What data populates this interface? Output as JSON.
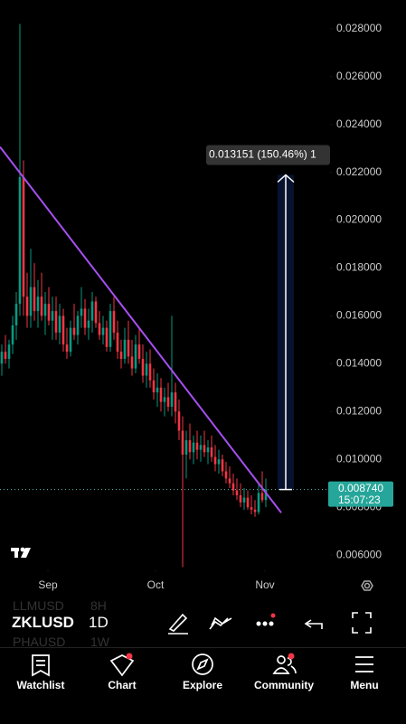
{
  "chart_data": {
    "type": "candlestick",
    "up_color": "#089981",
    "down_color": "#f23645",
    "xlim": [
      -0.5,
      90.75
    ],
    "ylim": [
      0.0054,
      0.0292
    ],
    "yticks": [
      {
        "value": 0.006,
        "label": "0.006000"
      },
      {
        "value": 0.008,
        "label": "0.008000"
      },
      {
        "value": 0.01,
        "label": "0.010000"
      },
      {
        "value": 0.012,
        "label": "0.012000"
      },
      {
        "value": 0.014,
        "label": "0.014000"
      },
      {
        "value": 0.016,
        "label": "0.016000"
      },
      {
        "value": 0.018,
        "label": "0.018000"
      },
      {
        "value": 0.02,
        "label": "0.020000"
      },
      {
        "value": 0.022,
        "label": "0.022000"
      },
      {
        "value": 0.024,
        "label": "0.024000"
      },
      {
        "value": 0.026,
        "label": "0.026000"
      },
      {
        "value": 0.028,
        "label": "0.028000"
      }
    ],
    "xticks": [
      {
        "value": 12.75,
        "label": "Sep"
      },
      {
        "value": 42.5,
        "label": "Oct"
      },
      {
        "value": 72.75,
        "label": "Nov"
      }
    ],
    "candles": [
      [
        0.014,
        0.0148,
        0.0135,
        0.0145
      ],
      [
        0.0145,
        0.0152,
        0.014,
        0.0142
      ],
      [
        0.0142,
        0.015,
        0.0138,
        0.0148
      ],
      [
        0.0148,
        0.016,
        0.0144,
        0.0156
      ],
      [
        0.0156,
        0.017,
        0.015,
        0.0165
      ],
      [
        0.0165,
        0.0282,
        0.016,
        0.0218
      ],
      [
        0.0218,
        0.0225,
        0.016,
        0.0168
      ],
      [
        0.0168,
        0.0178,
        0.0155,
        0.016
      ],
      [
        0.016,
        0.0188,
        0.0155,
        0.0172
      ],
      [
        0.0172,
        0.0182,
        0.0158,
        0.0162
      ],
      [
        0.0162,
        0.0175,
        0.0155,
        0.0168
      ],
      [
        0.0168,
        0.0178,
        0.0158,
        0.016
      ],
      [
        0.016,
        0.017,
        0.0152,
        0.0165
      ],
      [
        0.0165,
        0.0172,
        0.0156,
        0.0158
      ],
      [
        0.0158,
        0.0168,
        0.015,
        0.0162
      ],
      [
        0.0162,
        0.0168,
        0.015,
        0.0153
      ],
      [
        0.0153,
        0.0165,
        0.0148,
        0.016
      ],
      [
        0.016,
        0.0163,
        0.0145,
        0.0148
      ],
      [
        0.0148,
        0.0155,
        0.0142,
        0.0145
      ],
      [
        0.0145,
        0.0158,
        0.0143,
        0.0155
      ],
      [
        0.0155,
        0.0165,
        0.015,
        0.0152
      ],
      [
        0.0152,
        0.0162,
        0.0148,
        0.016
      ],
      [
        0.016,
        0.0172,
        0.0155,
        0.0163
      ],
      [
        0.0163,
        0.0167,
        0.0152,
        0.0155
      ],
      [
        0.0155,
        0.0163,
        0.015,
        0.0158
      ],
      [
        0.0158,
        0.017,
        0.0153,
        0.0166
      ],
      [
        0.0166,
        0.0168,
        0.0155,
        0.0157
      ],
      [
        0.0157,
        0.0162,
        0.015,
        0.0152
      ],
      [
        0.0152,
        0.016,
        0.0148,
        0.0155
      ],
      [
        0.0155,
        0.0158,
        0.0145,
        0.0147
      ],
      [
        0.0147,
        0.0165,
        0.0145,
        0.0162
      ],
      [
        0.0162,
        0.0168,
        0.015,
        0.0153
      ],
      [
        0.0153,
        0.0158,
        0.0142,
        0.0145
      ],
      [
        0.0145,
        0.015,
        0.0138,
        0.0142
      ],
      [
        0.0142,
        0.0155,
        0.014,
        0.015
      ],
      [
        0.015,
        0.0158,
        0.014,
        0.0143
      ],
      [
        0.0143,
        0.015,
        0.0135,
        0.0138
      ],
      [
        0.0138,
        0.0152,
        0.0136,
        0.0148
      ],
      [
        0.0148,
        0.0155,
        0.014,
        0.0142
      ],
      [
        0.0142,
        0.0148,
        0.0132,
        0.0135
      ],
      [
        0.0135,
        0.0145,
        0.013,
        0.014
      ],
      [
        0.014,
        0.0146,
        0.013,
        0.0133
      ],
      [
        0.0133,
        0.0138,
        0.0125,
        0.0128
      ],
      [
        0.0128,
        0.0136,
        0.0122,
        0.013
      ],
      [
        0.013,
        0.0134,
        0.012,
        0.0124
      ],
      [
        0.0124,
        0.013,
        0.0118,
        0.0126
      ],
      [
        0.0126,
        0.0132,
        0.012,
        0.0122
      ],
      [
        0.0122,
        0.016,
        0.0118,
        0.0128
      ],
      [
        0.0128,
        0.0132,
        0.0115,
        0.012
      ],
      [
        0.012,
        0.0125,
        0.0108,
        0.0112
      ],
      [
        0.0112,
        0.0118,
        0.0055,
        0.0102
      ],
      [
        0.0102,
        0.0112,
        0.0092,
        0.0108
      ],
      [
        0.0108,
        0.0115,
        0.01,
        0.0103
      ],
      [
        0.0103,
        0.011,
        0.0098,
        0.0107
      ],
      [
        0.0107,
        0.0112,
        0.01,
        0.0104
      ],
      [
        0.0104,
        0.011,
        0.0099,
        0.0106
      ],
      [
        0.0106,
        0.0112,
        0.0101,
        0.0103
      ],
      [
        0.0103,
        0.0108,
        0.0098,
        0.0105
      ],
      [
        0.0105,
        0.011,
        0.0099,
        0.0101
      ],
      [
        0.0101,
        0.0106,
        0.0095,
        0.0098
      ],
      [
        0.0098,
        0.0104,
        0.0094,
        0.01
      ],
      [
        0.01,
        0.0102,
        0.0093,
        0.0095
      ],
      [
        0.0095,
        0.0099,
        0.009,
        0.0092
      ],
      [
        0.0092,
        0.0097,
        0.0088,
        0.009
      ],
      [
        0.009,
        0.0094,
        0.0085,
        0.0087
      ],
      [
        0.0087,
        0.0092,
        0.0083,
        0.0085
      ],
      [
        0.0085,
        0.009,
        0.008,
        0.0082
      ],
      [
        0.0082,
        0.0088,
        0.0079,
        0.0084
      ],
      [
        0.0084,
        0.0087,
        0.0079,
        0.008
      ],
      [
        0.008,
        0.0085,
        0.0077,
        0.0079
      ],
      [
        0.0079,
        0.0083,
        0.0076,
        0.0078
      ],
      [
        0.0078,
        0.009,
        0.0077,
        0.0086
      ],
      [
        0.0086,
        0.0095,
        0.0082,
        0.0083
      ],
      [
        0.0083,
        0.0092,
        0.008,
        0.00874
      ]
    ],
    "trendline": {
      "color": "#a64ff0",
      "x": [
        -0.5,
        77.25
      ],
      "values": [
        0.02306,
        0.00777
      ]
    },
    "measure": {
      "x": 78.5,
      "from": 0.00874,
      "to": 0.02189,
      "label": "0.013151 (150.46%) 1"
    },
    "price_tag": {
      "value": 0.00874,
      "label": "0.008740",
      "countdown": "15:07:23",
      "color": "#26a69a"
    }
  },
  "toolbar": {
    "symbol": "ZKLUSD",
    "interval": "1D",
    "ghost": [
      "LLMUSD",
      "8H",
      "PHAUSD",
      "1W"
    ]
  },
  "nav": [
    "Watchlist",
    "Chart",
    "Explore",
    "Community",
    "Menu"
  ]
}
